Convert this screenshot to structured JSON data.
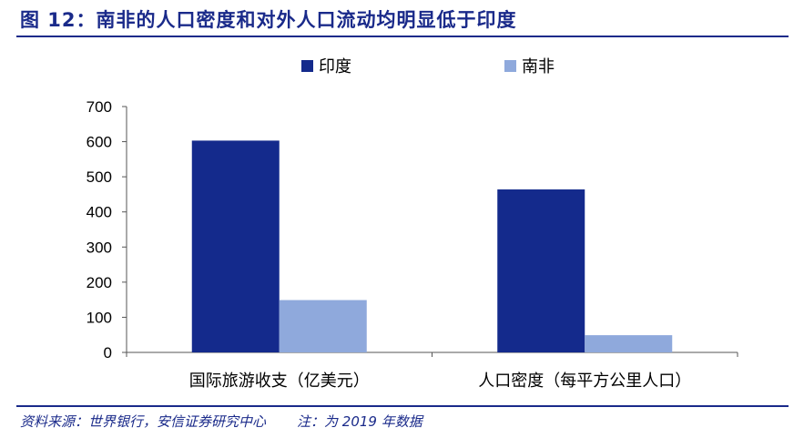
{
  "header": {
    "title": "图 12：南非的人口密度和对外人口流动均明显低于印度"
  },
  "footer": {
    "source": "资料来源：世界银行，安信证券研究中心",
    "note": "注：为 2019 年数据"
  },
  "colors": {
    "india": "#142a8c",
    "south_africa": "#8fa9dc",
    "accent": "#1a2a8a"
  },
  "chart_data": {
    "type": "bar",
    "title": "",
    "xlabel": "",
    "ylabel": "",
    "ylim": [
      0,
      700
    ],
    "yticks": [
      0,
      100,
      200,
      300,
      400,
      500,
      600,
      700
    ],
    "categories": [
      "国际旅游收支（亿美元）",
      "人口密度（每平方公里人口）"
    ],
    "series": [
      {
        "name": "印度",
        "values": [
          603,
          464
        ]
      },
      {
        "name": "南非",
        "values": [
          149,
          49
        ]
      }
    ],
    "legend_position": "top-center",
    "grid": false
  }
}
